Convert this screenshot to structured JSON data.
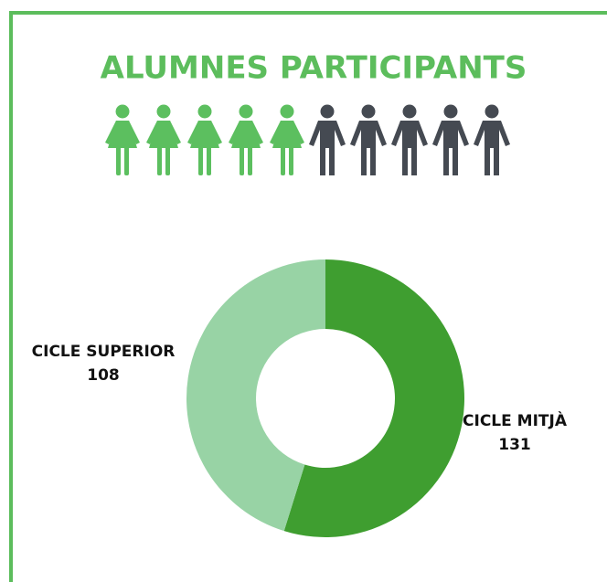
{
  "chart_data": {
    "type": "pie",
    "donut": true,
    "title": "ALUMNES PARTICIPANTS",
    "categories": [
      "CICLE MITJÀ",
      "CICLE SUPERIOR"
    ],
    "values": [
      131,
      108
    ],
    "colors": [
      "#3f9e30",
      "#98d3a5"
    ]
  }
}
